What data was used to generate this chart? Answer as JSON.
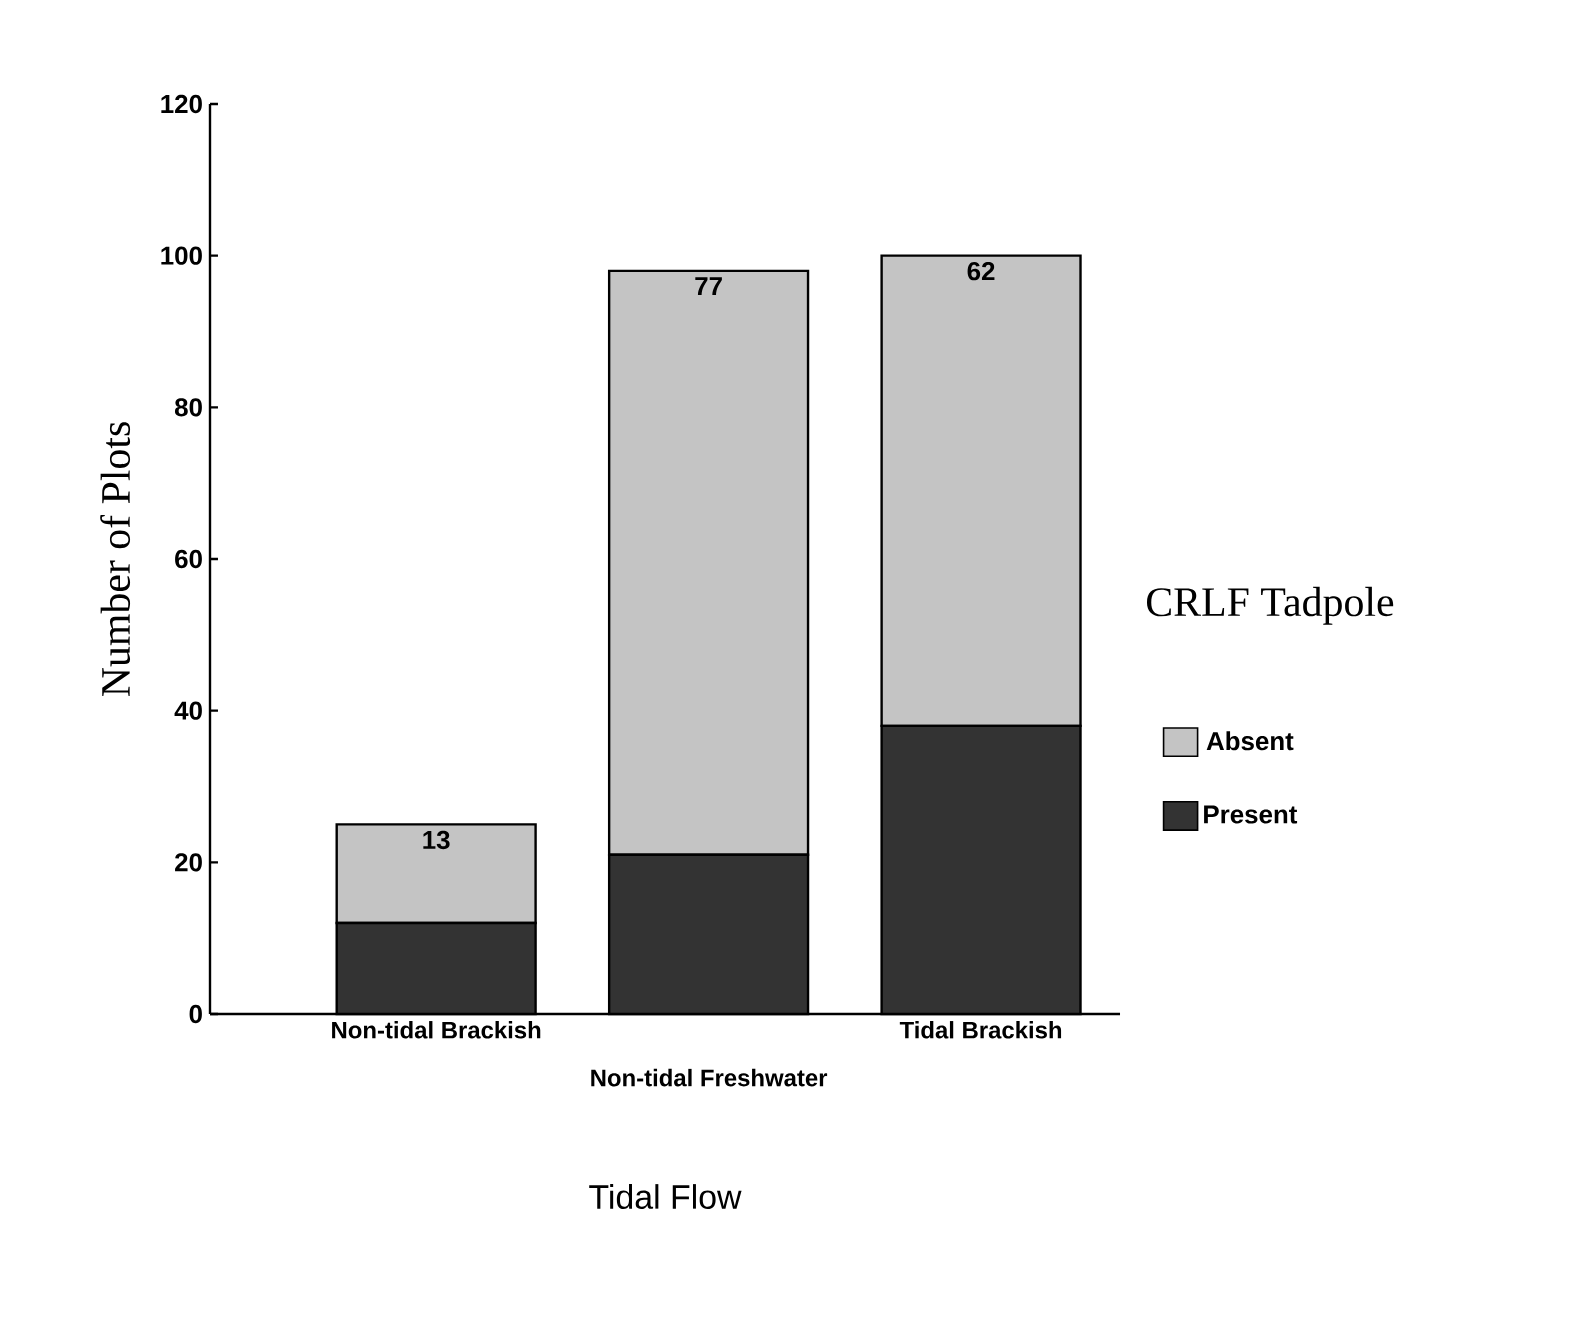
{
  "chart_data": {
    "type": "bar",
    "stacked": true,
    "xlabel": "Tidal Flow",
    "ylabel": "Number of Plots",
    "legend_title": "CRLF Tadpole",
    "legend": "right",
    "categories": [
      "Non-tidal Brackish",
      "Non-tidal Freshwater",
      "Tidal Brackish"
    ],
    "series": [
      {
        "name": "Present",
        "color": "#333333",
        "values": [
          12,
          21,
          38
        ]
      },
      {
        "name": "Absent",
        "color": "#c4c4c4",
        "values": [
          13,
          77,
          62
        ],
        "value_labels": [
          "13",
          "77",
          "62"
        ]
      }
    ],
    "ylim": [
      0,
      120
    ],
    "yticks": [
      0,
      20,
      40,
      60,
      80,
      100,
      120
    ]
  }
}
